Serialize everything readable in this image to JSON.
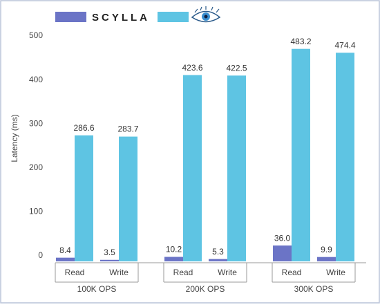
{
  "chart_data": {
    "type": "bar",
    "y_label": "Latency (ms)",
    "groups": [
      "100K OPS",
      "200K OPS",
      "300K OPS"
    ],
    "categories": [
      "Read",
      "Write",
      "Read",
      "Write",
      "Read",
      "Write"
    ],
    "series": [
      {
        "name": "SCYLLA",
        "color": "#6b74c6",
        "values": [
          8.4,
          3.5,
          10.2,
          5.3,
          36.0,
          9.9
        ],
        "value_labels": [
          "8.4",
          "3.5",
          "10.2",
          "5.3",
          "36.0",
          "9.9"
        ]
      },
      {
        "color": "#5ec4e3",
        "values": [
          286.6,
          283.7,
          423.6,
          422.5,
          483.2,
          474.4
        ]
      }
    ],
    "ylim": [
      0,
      500
    ],
    "yticks": [
      0,
      100,
      200,
      300,
      400,
      500
    ]
  }
}
